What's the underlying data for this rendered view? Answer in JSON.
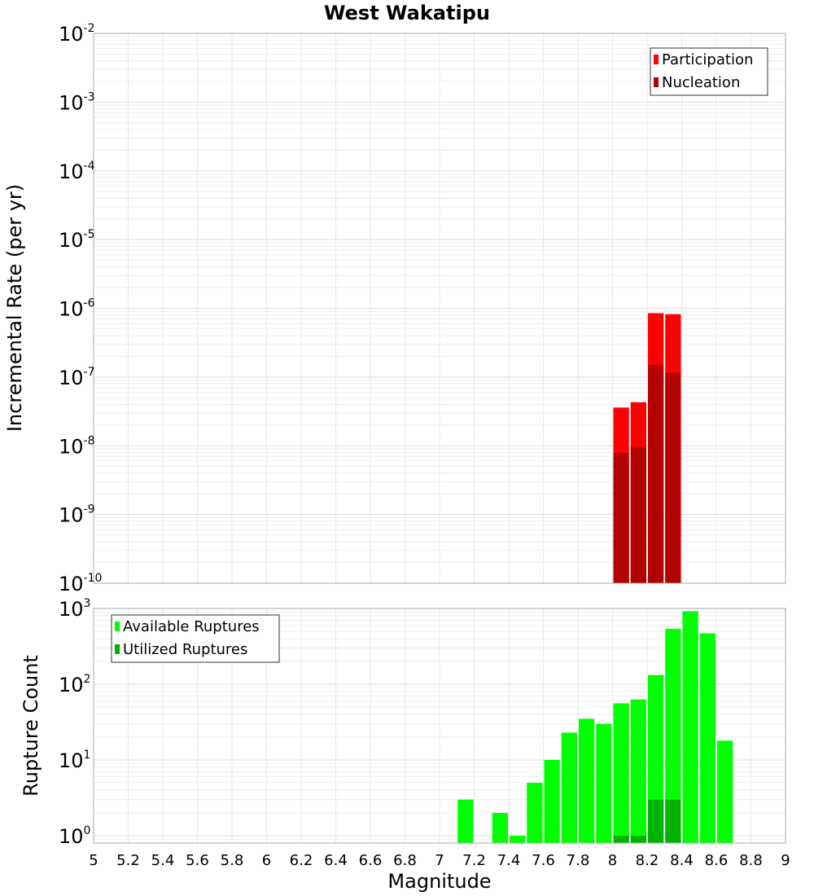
{
  "chart_data": [
    {
      "type": "bar",
      "title": "West Wakatipu",
      "xlabel": "",
      "ylabel": "Incremental Rate (per yr)",
      "y_scale": "log",
      "ylim": [
        1e-10,
        0.01
      ],
      "xlim": [
        5,
        9
      ],
      "y_ticks": [
        {
          "base": "10",
          "exp": "-10"
        },
        {
          "base": "10",
          "exp": "-9"
        },
        {
          "base": "10",
          "exp": "-8"
        },
        {
          "base": "10",
          "exp": "-7"
        },
        {
          "base": "10",
          "exp": "-6"
        },
        {
          "base": "10",
          "exp": "-5"
        },
        {
          "base": "10",
          "exp": "-4"
        },
        {
          "base": "10",
          "exp": "-3"
        },
        {
          "base": "10",
          "exp": "-2"
        }
      ],
      "grid": true,
      "legend_position": "top-right",
      "bar_width": 0.1,
      "series": [
        {
          "name": "Participation",
          "color": "#ff0000",
          "x": [
            8.05,
            8.15,
            8.25,
            8.35
          ],
          "values": [
            3.6e-08,
            4.3e-08,
            8.5e-07,
            8.2e-07
          ]
        },
        {
          "name": "Nucleation",
          "color": "#b30000",
          "x": [
            8.05,
            8.15,
            8.25,
            8.35
          ],
          "values": [
            7.9e-09,
            9.7e-09,
            1.5e-07,
            1.15e-07
          ]
        }
      ]
    },
    {
      "type": "bar",
      "title": "",
      "xlabel": "Magnitude",
      "ylabel": "Rupture Count",
      "y_scale": "log",
      "ylim": [
        0.8,
        1000
      ],
      "xlim": [
        5,
        9
      ],
      "y_ticks": [
        {
          "base": "10",
          "exp": "0"
        },
        {
          "base": "10",
          "exp": "1"
        },
        {
          "base": "10",
          "exp": "2"
        },
        {
          "base": "10",
          "exp": "3"
        }
      ],
      "x_ticks": [
        "5",
        "5.2",
        "5.4",
        "5.6",
        "5.8",
        "6",
        "6.2",
        "6.4",
        "6.6",
        "6.8",
        "7",
        "7.2",
        "7.4",
        "7.6",
        "7.8",
        "8",
        "8.2",
        "8.4",
        "8.6",
        "8.8",
        "9"
      ],
      "grid": true,
      "legend_position": "top-left",
      "bar_width": 0.1,
      "series": [
        {
          "name": "Available Ruptures",
          "color": "#00ff00",
          "x": [
            7.15,
            7.35,
            7.45,
            7.55,
            7.65,
            7.75,
            7.85,
            7.95,
            8.05,
            8.15,
            8.25,
            8.35,
            8.45,
            8.55,
            8.65
          ],
          "values": [
            3,
            2,
            1,
            5,
            10,
            23,
            35,
            30,
            56,
            63,
            132,
            540,
            920,
            470,
            18
          ]
        },
        {
          "name": "Utilized Ruptures",
          "color": "#00b300",
          "x": [
            8.05,
            8.15,
            8.25,
            8.35
          ],
          "values": [
            1,
            1,
            3,
            3
          ]
        }
      ]
    }
  ]
}
